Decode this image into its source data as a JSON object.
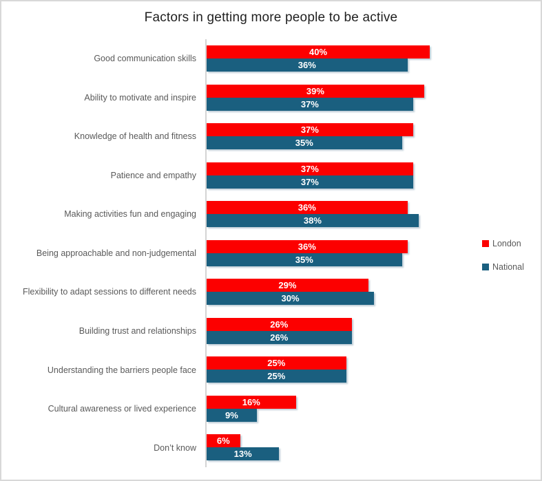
{
  "chart_data": {
    "type": "bar",
    "orientation": "horizontal",
    "title": "Factors in getting more people to be active",
    "categories": [
      "Good communication skills",
      "Ability to motivate and inspire",
      "Knowledge of health and fitness",
      "Patience and empathy",
      "Making activities fun and engaging",
      "Being approachable and non-judgemental",
      "Flexibility to adapt sessions to different needs",
      "Building trust and relationships",
      "Understanding the barriers people face",
      "Cultural awareness or lived experience",
      "Don’t know"
    ],
    "series": [
      {
        "name": "London",
        "color": "#FC0000",
        "values": [
          40,
          39,
          37,
          37,
          36,
          36,
          29,
          26,
          25,
          16,
          6
        ]
      },
      {
        "name": "National",
        "color": "#1A5F7F",
        "values": [
          36,
          37,
          35,
          37,
          38,
          35,
          30,
          26,
          25,
          9,
          13
        ]
      }
    ],
    "value_suffix": "%",
    "data_labels": "inside-center-white-bold",
    "legend_position": "right-middle",
    "grid": false,
    "axis_ticks_visible": false
  },
  "styles": {
    "label_color": "#595959",
    "title_color": "#1F1F1F",
    "frame_border_color": "#D8D8D8",
    "axis_line_color": "#D4D4D4",
    "background_color": "#FFFFFF"
  }
}
